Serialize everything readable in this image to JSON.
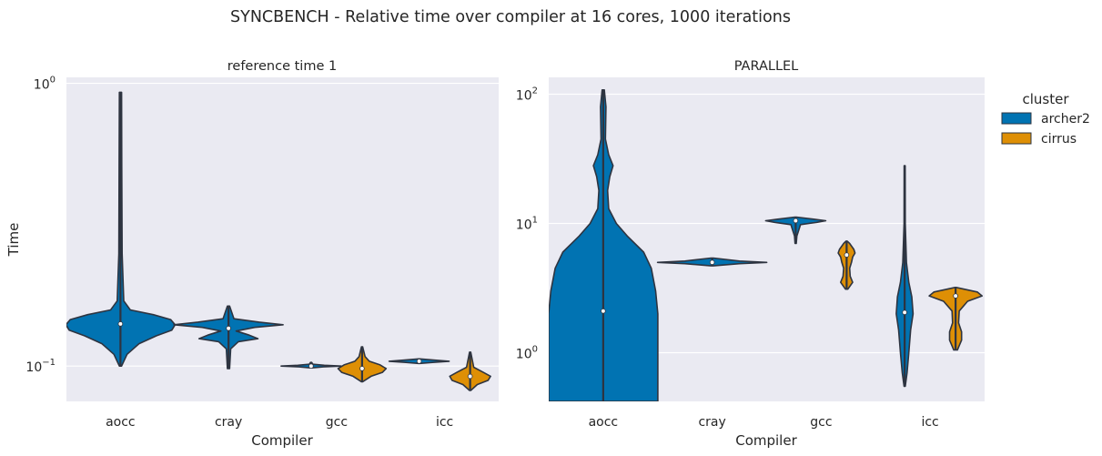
{
  "suptitle": "SYNCBENCH - Relative time over compiler at 16 cores, 1000 iterations",
  "colors": {
    "panel_bg": "#eaeaf2",
    "grid": "#ffffff",
    "archer2": "#0173b2",
    "cirrus": "#de8f05",
    "outline": "#2e3440"
  },
  "legend": {
    "title": "cluster",
    "items": [
      {
        "label": "archer2",
        "color": "#0173b2"
      },
      {
        "label": "cirrus",
        "color": "#de8f05"
      }
    ]
  },
  "chart_data": [
    {
      "type": "violin",
      "title": "reference time 1",
      "xlabel": "Compiler",
      "ylabel": "Time",
      "yscale": "log",
      "ylim": [
        0.075,
        1.05
      ],
      "yticks": [
        {
          "base": "10",
          "exp": "0",
          "value": 1
        },
        {
          "base": "10",
          "exp": "−1",
          "value": 0.1
        }
      ],
      "categories": [
        "aocc",
        "cray",
        "gcc",
        "icc"
      ],
      "series": [
        {
          "name": "archer2",
          "violins": [
            {
              "category": "aocc",
              "min": 0.1,
              "max": 0.93,
              "median": 0.141,
              "profile": [
                [
                  0.1,
                  0.01
                ],
                [
                  0.11,
                  0.06
                ],
                [
                  0.12,
                  0.17
                ],
                [
                  0.128,
                  0.33
                ],
                [
                  0.134,
                  0.47
                ],
                [
                  0.14,
                  0.5
                ],
                [
                  0.146,
                  0.46
                ],
                [
                  0.152,
                  0.3
                ],
                [
                  0.158,
                  0.09
                ],
                [
                  0.17,
                  0.03
                ],
                [
                  0.25,
                  0.015
                ],
                [
                  0.5,
                  0.012
                ],
                [
                  0.93,
                  0.01
                ]
              ]
            },
            {
              "category": "cray",
              "min": 0.098,
              "max": 0.163,
              "median": 0.136,
              "profile": [
                [
                  0.098,
                  0.01
                ],
                [
                  0.115,
                  0.02
                ],
                [
                  0.122,
                  0.09
                ],
                [
                  0.125,
                  0.27
                ],
                [
                  0.129,
                  0.18
                ],
                [
                  0.133,
                  0.07
                ],
                [
                  0.137,
                  0.24
                ],
                [
                  0.14,
                  0.5
                ],
                [
                  0.143,
                  0.28
                ],
                [
                  0.147,
                  0.05
                ],
                [
                  0.163,
                  0.01
                ]
              ]
            },
            {
              "category": "gcc",
              "min": 0.099,
              "max": 0.103,
              "median": 0.1,
              "profile": [
                [
                  0.0985,
                  0.01
                ],
                [
                  0.0993,
                  0.2
                ],
                [
                  0.1,
                  0.5
                ],
                [
                  0.1007,
                  0.22
                ],
                [
                  0.1015,
                  0.03
                ],
                [
                  0.103,
                  0.01
                ]
              ]
            },
            {
              "category": "icc",
              "min": 0.102,
              "max": 0.106,
              "median": 0.104,
              "profile": [
                [
                  0.1022,
                  0.01
                ],
                [
                  0.103,
                  0.22
                ],
                [
                  0.104,
                  0.5
                ],
                [
                  0.105,
                  0.24
                ],
                [
                  0.106,
                  0.01
                ]
              ]
            }
          ]
        },
        {
          "name": "cirrus",
          "violins": [
            {
              "category": "gcc",
              "min": 0.088,
              "max": 0.117,
              "median": 0.098,
              "profile": [
                [
                  0.088,
                  0.01
                ],
                [
                  0.092,
                  0.15
                ],
                [
                  0.095,
                  0.34
                ],
                [
                  0.098,
                  0.4
                ],
                [
                  0.101,
                  0.3
                ],
                [
                  0.104,
                  0.12
                ],
                [
                  0.108,
                  0.05
                ],
                [
                  0.117,
                  0.01
                ]
              ]
            },
            {
              "category": "icc",
              "min": 0.082,
              "max": 0.112,
              "median": 0.092,
              "profile": [
                [
                  0.082,
                  0.01
                ],
                [
                  0.086,
                  0.12
                ],
                [
                  0.089,
                  0.3
                ],
                [
                  0.092,
                  0.34
                ],
                [
                  0.095,
                  0.22
                ],
                [
                  0.099,
                  0.06
                ],
                [
                  0.112,
                  0.01
                ]
              ]
            }
          ]
        }
      ]
    },
    {
      "type": "violin",
      "title": "PARALLEL",
      "xlabel": "Compiler",
      "ylabel": "",
      "yscale": "log",
      "ylim": [
        0.42,
        135
      ],
      "yticks": [
        {
          "base": "10",
          "exp": "2",
          "value": 100
        },
        {
          "base": "10",
          "exp": "1",
          "value": 10
        },
        {
          "base": "10",
          "exp": "0",
          "value": 1
        }
      ],
      "categories": [
        "aocc",
        "cray",
        "gcc",
        "icc"
      ],
      "series": [
        {
          "name": "archer2",
          "violins": [
            {
              "category": "aocc",
              "min": 0.42,
              "max": 108,
              "median": 2.1,
              "profile": [
                [
                  0.42,
                  0.5
                ],
                [
                  1,
                  0.5
                ],
                [
                  2,
                  0.5
                ],
                [
                  3,
                  0.48
                ],
                [
                  4.5,
                  0.44
                ],
                [
                  6,
                  0.37
                ],
                [
                  8,
                  0.22
                ],
                [
                  10,
                  0.12
                ],
                [
                  13,
                  0.05
                ],
                [
                  18,
                  0.04
                ],
                [
                  23,
                  0.06
                ],
                [
                  28,
                  0.09
                ],
                [
                  34,
                  0.05
                ],
                [
                  45,
                  0.02
                ],
                [
                  80,
                  0.025
                ],
                [
                  108,
                  0.01
                ]
              ]
            },
            {
              "category": "cray",
              "min": 4.7,
              "max": 5.4,
              "median": 5.0,
              "profile": [
                [
                  4.7,
                  0.01
                ],
                [
                  4.88,
                  0.25
                ],
                [
                  5.0,
                  0.5
                ],
                [
                  5.12,
                  0.25
                ],
                [
                  5.4,
                  0.01
                ]
              ]
            },
            {
              "category": "gcc",
              "min": 7.0,
              "max": 11.2,
              "median": 10.5,
              "profile": [
                [
                  7.0,
                  0.01
                ],
                [
                  8.0,
                  0.02
                ],
                [
                  9.8,
                  0.08
                ],
                [
                  10.2,
                  0.35
                ],
                [
                  10.5,
                  0.5
                ],
                [
                  10.8,
                  0.3
                ],
                [
                  11.2,
                  0.01
                ]
              ]
            },
            {
              "category": "icc",
              "min": 0.55,
              "max": 28,
              "median": 2.05,
              "profile": [
                [
                  0.55,
                  0.01
                ],
                [
                  0.7,
                  0.04
                ],
                [
                  1.0,
                  0.07
                ],
                [
                  1.5,
                  0.1
                ],
                [
                  2.0,
                  0.14
                ],
                [
                  2.7,
                  0.12
                ],
                [
                  3.5,
                  0.07
                ],
                [
                  5,
                  0.03
                ],
                [
                  10,
                  0.01
                ],
                [
                  28,
                  0.008
                ]
              ]
            }
          ]
        },
        {
          "name": "cirrus",
          "violins": [
            {
              "category": "gcc",
              "min": 3.1,
              "max": 7.3,
              "median": 5.7,
              "profile": [
                [
                  3.1,
                  0.02
                ],
                [
                  3.5,
                  0.1
                ],
                [
                  3.9,
                  0.06
                ],
                [
                  4.5,
                  0.05
                ],
                [
                  5.0,
                  0.08
                ],
                [
                  5.5,
                  0.1
                ],
                [
                  5.9,
                  0.14
                ],
                [
                  6.3,
                  0.12
                ],
                [
                  7.0,
                  0.05
                ],
                [
                  7.3,
                  0.01
                ]
              ]
            },
            {
              "category": "icc",
              "min": 1.05,
              "max": 3.2,
              "median": 2.75,
              "profile": [
                [
                  1.05,
                  0.03
                ],
                [
                  1.25,
                  0.1
                ],
                [
                  1.45,
                  0.1
                ],
                [
                  1.7,
                  0.05
                ],
                [
                  2.1,
                  0.06
                ],
                [
                  2.5,
                  0.2
                ],
                [
                  2.75,
                  0.44
                ],
                [
                  2.95,
                  0.36
                ],
                [
                  3.2,
                  0.01
                ]
              ]
            }
          ]
        }
      ]
    }
  ]
}
